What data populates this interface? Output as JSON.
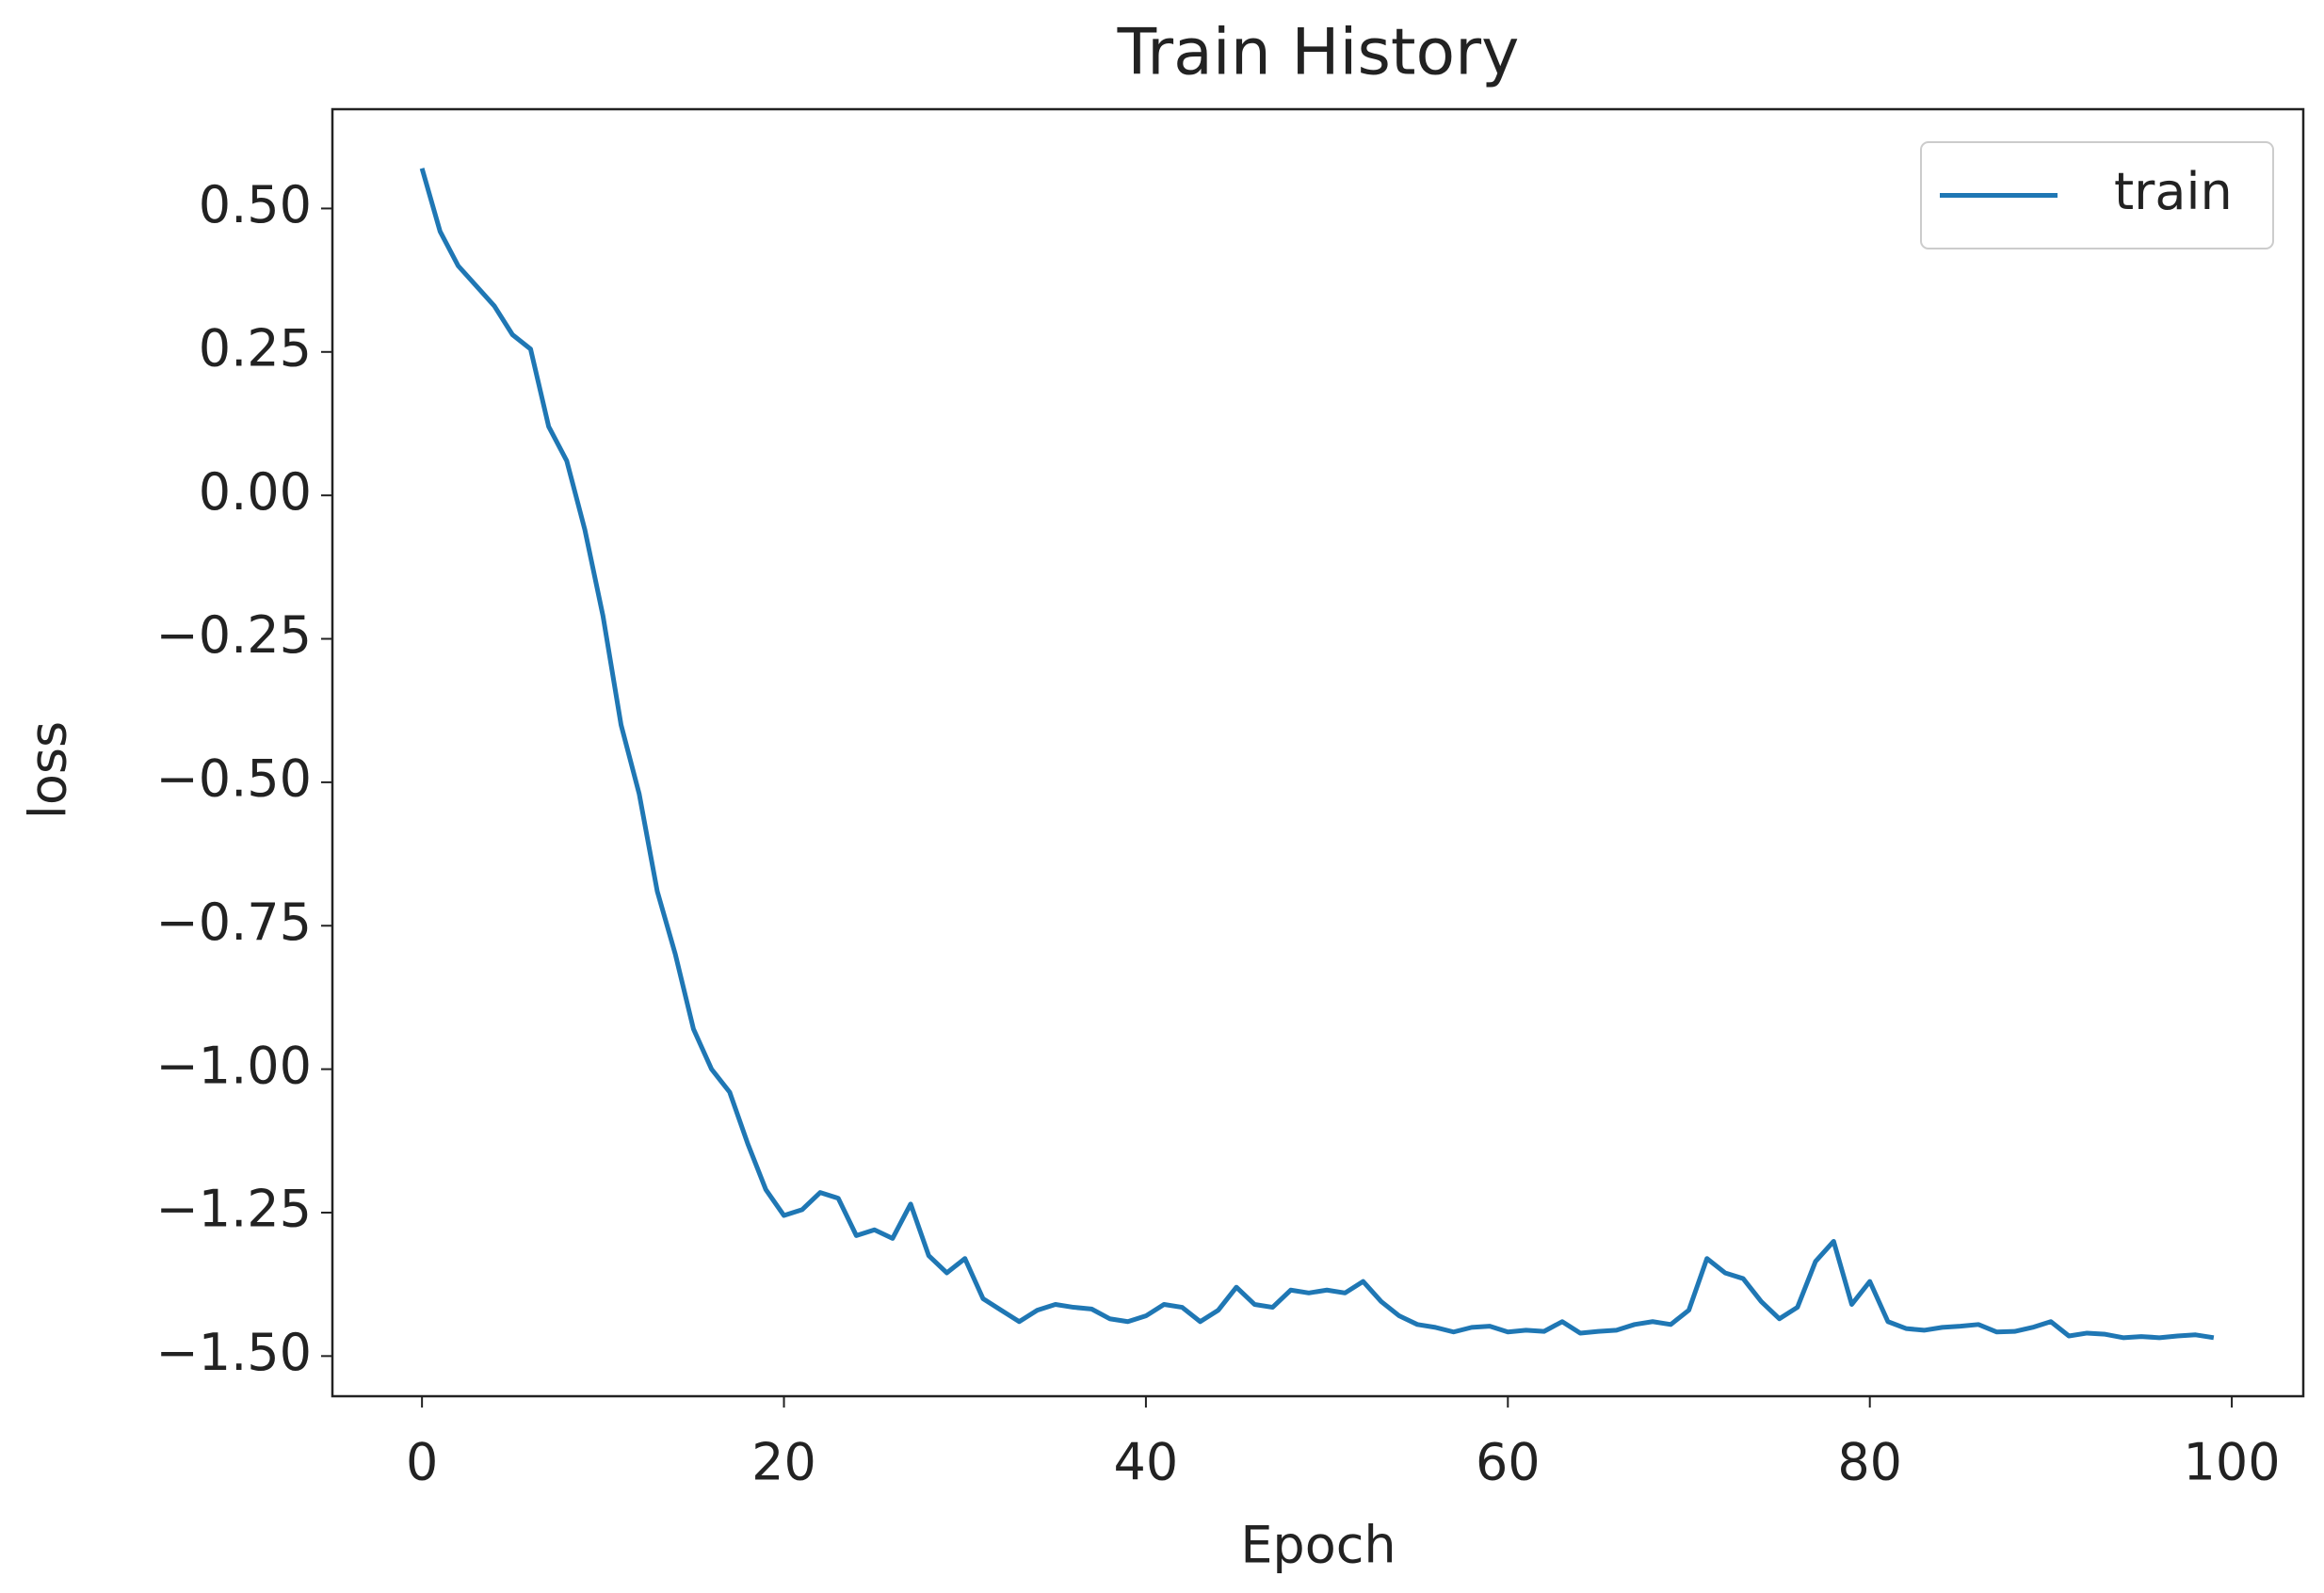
{
  "chart_data": {
    "type": "line",
    "title": "Train History",
    "xlabel": "Epoch",
    "ylabel": "loss",
    "x": [
      0,
      1,
      2,
      3,
      4,
      5,
      6,
      7,
      8,
      9,
      10,
      11,
      12,
      13,
      14,
      15,
      16,
      17,
      18,
      19,
      20,
      21,
      22,
      23,
      24,
      25,
      26,
      27,
      28,
      29,
      30,
      31,
      32,
      33,
      34,
      35,
      36,
      37,
      38,
      39,
      40,
      41,
      42,
      43,
      44,
      45,
      46,
      47,
      48,
      49,
      50,
      51,
      52,
      53,
      54,
      55,
      56,
      57,
      58,
      59,
      60,
      61,
      62,
      63,
      64,
      65,
      66,
      67,
      68,
      69,
      70,
      71,
      72,
      73,
      74,
      75,
      76,
      77,
      78,
      79,
      80,
      81,
      82,
      83,
      84,
      85,
      86,
      87,
      88,
      89,
      90,
      91,
      92,
      93,
      94,
      95,
      96,
      97,
      98,
      99
    ],
    "series": [
      {
        "name": "train",
        "color": "#1f77b4",
        "values": [
          0.57,
          0.46,
          0.4,
          0.365,
          0.33,
          0.28,
          0.255,
          0.12,
          0.06,
          -0.06,
          -0.21,
          -0.4,
          -0.52,
          -0.69,
          -0.8,
          -0.93,
          -1.0,
          -1.04,
          -1.13,
          -1.21,
          -1.255,
          -1.245,
          -1.215,
          -1.225,
          -1.29,
          -1.28,
          -1.295,
          -1.235,
          -1.325,
          -1.355,
          -1.33,
          -1.4,
          -1.42,
          -1.44,
          -1.42,
          -1.41,
          -1.415,
          -1.418,
          -1.435,
          -1.44,
          -1.43,
          -1.41,
          -1.415,
          -1.44,
          -1.42,
          -1.38,
          -1.41,
          -1.415,
          -1.385,
          -1.39,
          -1.385,
          -1.39,
          -1.37,
          -1.405,
          -1.43,
          -1.445,
          -1.45,
          -1.458,
          -1.45,
          -1.448,
          -1.458,
          -1.455,
          -1.457,
          -1.44,
          -1.46,
          -1.457,
          -1.455,
          -1.445,
          -1.44,
          -1.445,
          -1.42,
          -1.33,
          -1.355,
          -1.365,
          -1.405,
          -1.435,
          -1.415,
          -1.335,
          -1.3,
          -1.41,
          -1.37,
          -1.44,
          -1.452,
          -1.455,
          -1.45,
          -1.448,
          -1.445,
          -1.458,
          -1.457,
          -1.45,
          -1.44,
          -1.465,
          -1.46,
          -1.462,
          -1.468,
          -1.466,
          -1.468,
          -1.465,
          -1.463,
          -1.468
        ]
      }
    ],
    "xlim": [
      -4.95,
      103.95
    ],
    "xticks": [
      0,
      20,
      40,
      60,
      80,
      100
    ],
    "ylim": [
      -1.57,
      0.673
    ],
    "yticks": [
      {
        "value": -1.5,
        "label": "−1.50"
      },
      {
        "value": -1.25,
        "label": "−1.25"
      },
      {
        "value": -1.0,
        "label": "−1.00"
      },
      {
        "value": -0.75,
        "label": "−0.75"
      },
      {
        "value": -0.5,
        "label": "−0.50"
      },
      {
        "value": -0.25,
        "label": "−0.25"
      },
      {
        "value": 0,
        "label": "0.00"
      },
      {
        "value": 0.25,
        "label": "0.25"
      },
      {
        "value": 0.5,
        "label": "0.50"
      }
    ],
    "legend": "upper right"
  }
}
